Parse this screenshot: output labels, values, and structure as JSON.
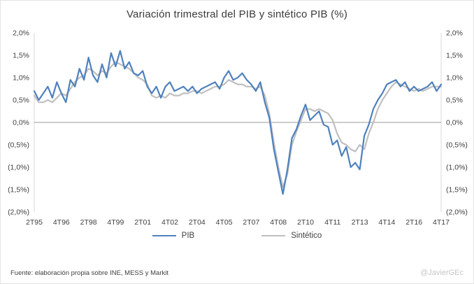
{
  "title": "Variación trimestral del PIB y sintético PIB (%)",
  "chart_data": {
    "type": "line",
    "title": "Variación trimestral del PIB y sintético PIB (%)",
    "x_unit": "quarter",
    "grid": "zero-line-only",
    "legend_position": "bottom",
    "ylim": [
      -2.0,
      2.0
    ],
    "axis_color": "#d9d9d9",
    "zero_line_color": "#9a9a9a",
    "y_ticks": [
      {
        "value": 2.0,
        "label": "2,0%"
      },
      {
        "value": 1.5,
        "label": "1,5%"
      },
      {
        "value": 1.0,
        "label": "1,0%"
      },
      {
        "value": 0.5,
        "label": "0,5%"
      },
      {
        "value": 0.0,
        "label": "0,0%"
      },
      {
        "value": -0.5,
        "label": "(0,5%)"
      },
      {
        "value": -1.0,
        "label": "(1,0%)"
      },
      {
        "value": -1.5,
        "label": "(1,5%)"
      },
      {
        "value": -2.0,
        "label": "(2,0%)"
      }
    ],
    "x_ticks": [
      {
        "index": 0,
        "label": "2T95"
      },
      {
        "index": 6,
        "label": "4T96"
      },
      {
        "index": 12,
        "label": "2T98"
      },
      {
        "index": 18,
        "label": "4T99"
      },
      {
        "index": 24,
        "label": "2T01"
      },
      {
        "index": 30,
        "label": "4T02"
      },
      {
        "index": 36,
        "label": "2T04"
      },
      {
        "index": 42,
        "label": "4T05"
      },
      {
        "index": 48,
        "label": "2T07"
      },
      {
        "index": 54,
        "label": "4T08"
      },
      {
        "index": 60,
        "label": "2T10"
      },
      {
        "index": 66,
        "label": "4T11"
      },
      {
        "index": 72,
        "label": "2T13"
      },
      {
        "index": 78,
        "label": "4T14"
      },
      {
        "index": 84,
        "label": "2T16"
      },
      {
        "index": 90,
        "label": "4T17"
      }
    ],
    "series": [
      {
        "name": "PIB",
        "color": "#4f81bd",
        "values": [
          0.7,
          0.5,
          0.65,
          0.8,
          0.55,
          0.9,
          0.65,
          0.45,
          0.95,
          0.8,
          1.2,
          0.95,
          1.45,
          1.05,
          0.9,
          1.3,
          1.0,
          1.55,
          1.25,
          1.6,
          1.2,
          1.35,
          1.1,
          1.05,
          1.15,
          0.8,
          0.65,
          0.8,
          0.55,
          0.8,
          0.9,
          0.7,
          0.75,
          0.8,
          0.7,
          0.8,
          0.65,
          0.75,
          0.8,
          0.85,
          0.9,
          0.75,
          1.0,
          1.15,
          0.95,
          1.0,
          1.1,
          0.95,
          0.85,
          0.7,
          0.9,
          0.45,
          0.1,
          -0.6,
          -1.1,
          -1.6,
          -1.05,
          -0.35,
          -0.15,
          0.15,
          0.4,
          0.05,
          0.15,
          0.25,
          -0.05,
          -0.1,
          -0.5,
          -0.4,
          -0.75,
          -0.55,
          -1.0,
          -0.9,
          -1.05,
          -0.3,
          -0.05,
          0.3,
          0.5,
          0.65,
          0.85,
          0.9,
          0.95,
          0.8,
          0.9,
          0.7,
          0.8,
          0.7,
          0.75,
          0.8,
          0.9,
          0.7,
          0.85
        ]
      },
      {
        "name": "Sintético",
        "color": "#bfbfbf",
        "values": [
          0.6,
          0.45,
          0.45,
          0.5,
          0.45,
          0.55,
          0.65,
          0.6,
          0.75,
          0.9,
          1.0,
          1.05,
          1.2,
          1.15,
          1.05,
          1.15,
          1.1,
          1.25,
          1.35,
          1.3,
          1.25,
          1.2,
          1.1,
          1.0,
          0.95,
          0.85,
          0.6,
          0.55,
          0.6,
          0.55,
          0.65,
          0.6,
          0.6,
          0.65,
          0.65,
          0.7,
          0.7,
          0.65,
          0.7,
          0.75,
          0.8,
          0.8,
          0.85,
          0.95,
          0.9,
          0.85,
          0.85,
          0.8,
          0.8,
          0.75,
          0.8,
          0.6,
          0.2,
          -0.45,
          -1.0,
          -1.45,
          -1.15,
          -0.5,
          -0.2,
          0.05,
          0.3,
          0.3,
          0.25,
          0.3,
          0.25,
          0.2,
          0.05,
          -0.25,
          -0.45,
          -0.5,
          -0.6,
          -0.65,
          -0.5,
          -0.6,
          -0.25,
          0.0,
          0.3,
          0.5,
          0.65,
          0.8,
          0.9,
          0.85,
          0.8,
          0.75,
          0.7,
          0.75,
          0.7,
          0.75,
          0.8,
          0.8,
          0.8
        ]
      }
    ]
  },
  "footer": {
    "source": "Fuente: elaboración  propia sobre INE, MESS y Markit",
    "watermark": "@JavierGEc"
  }
}
